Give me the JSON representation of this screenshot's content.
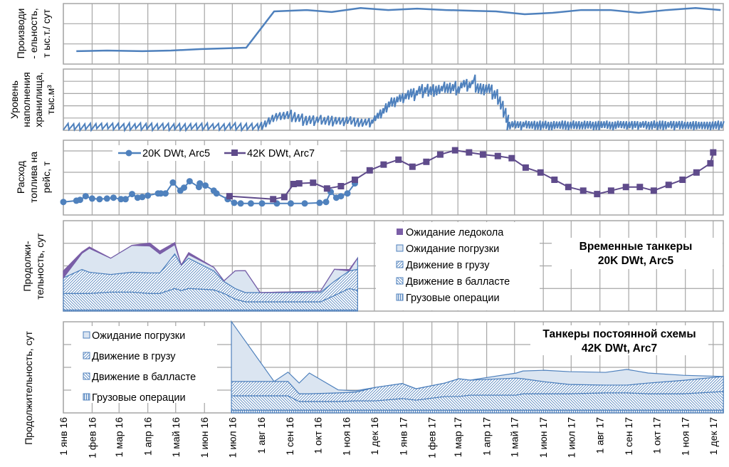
{
  "colors": {
    "blue": "#4f81bd",
    "purple": "#5f4b8b",
    "ice": "#7b5ea7",
    "area_fill": "#dbe5f1",
    "grid": "#a6a6a6"
  },
  "chart_data": [
    {
      "id": "productivity",
      "type": "line",
      "ylabel_lines": [
        "Производи",
        "- ельность,",
        "т ыс.т./ сут"
      ],
      "ylim": [
        0,
        3
      ],
      "x_unit": "days since 1 янв 16",
      "series": [
        {
          "name": "productivity",
          "x": [
            14,
            47,
            85,
            116,
            147,
            197,
            227,
            262,
            289,
            320,
            350,
            381,
            412,
            443,
            466,
            497,
            527,
            558,
            589,
            620,
            650,
            681,
            708
          ],
          "y": [
            0.64,
            0.67,
            0.64,
            0.67,
            0.74,
            0.81,
            2.61,
            2.68,
            2.58,
            2.78,
            2.68,
            2.75,
            2.68,
            2.64,
            2.61,
            2.47,
            2.54,
            2.68,
            2.68,
            2.54,
            2.68,
            2.78,
            2.68
          ]
        }
      ]
    },
    {
      "id": "storage",
      "type": "line",
      "ylabel_lines": [
        "Уровень",
        "наполнения",
        "хранилища,",
        "тыс.м³"
      ],
      "ylim": [
        0,
        5
      ],
      "sawtooth_segments": [
        {
          "from": 0,
          "to": 210,
          "period": 6,
          "envelope": [
            [
              0,
              0.6
            ],
            [
              210,
              0.6
            ]
          ],
          "depth": 0.6
        },
        {
          "from": 210,
          "to": 330,
          "period": 4,
          "envelope": [
            [
              210,
              0.7
            ],
            [
              227,
              1.5
            ],
            [
              240,
              1.8
            ],
            [
              260,
              1.3
            ],
            [
              300,
              1.2
            ],
            [
              330,
              1.0
            ]
          ],
          "depth": 0.8
        },
        {
          "from": 330,
          "to": 478,
          "period": 3,
          "envelope": [
            [
              330,
              1.0
            ],
            [
              345,
              2.4
            ],
            [
              360,
              3.4
            ],
            [
              380,
              3.8
            ],
            [
              400,
              3.9
            ],
            [
              420,
              4.1
            ],
            [
              440,
              4.6
            ],
            [
              455,
              4.1
            ],
            [
              468,
              3.2
            ],
            [
              478,
              1.2
            ]
          ],
          "depth": 0.9
        },
        {
          "from": 478,
          "to": 711,
          "period": 3,
          "envelope": [
            [
              478,
              0.8
            ],
            [
              711,
              0.8
            ]
          ],
          "depth": 0.75
        }
      ]
    },
    {
      "id": "fuel",
      "type": "line",
      "ylabel_lines": [
        "Расход",
        "топлива на",
        "рейс, т"
      ],
      "ylim": [
        0,
        3.5
      ],
      "series": [
        {
          "name": "20K DWt, Arc5",
          "marker": "circle",
          "x": [
            0,
            14,
            18,
            24,
            31,
            39,
            47,
            54,
            62,
            67,
            74,
            80,
            85,
            91,
            102,
            105,
            110,
            118,
            126,
            130,
            136,
            146,
            147,
            153,
            162,
            165,
            177,
            184,
            191,
            202,
            214,
            230,
            245,
            260,
            276,
            283,
            288,
            294,
            299,
            306,
            314
          ],
          "y": [
            0.61,
            0.67,
            0.71,
            0.88,
            0.77,
            0.74,
            0.77,
            0.81,
            0.74,
            0.74,
            0.98,
            0.81,
            0.84,
            0.91,
            1.01,
            1.01,
            1.01,
            1.52,
            1.14,
            1.28,
            1.58,
            1.31,
            1.48,
            1.38,
            1.14,
            1.01,
            0.74,
            0.57,
            0.54,
            0.54,
            0.54,
            0.54,
            0.54,
            0.54,
            0.57,
            0.61,
            1.08,
            0.81,
            0.88,
            1.01,
            1.48
          ]
        },
        {
          "name": "42K DWt, Arc7",
          "marker": "square",
          "x": [
            179,
            226,
            238,
            248,
            254,
            269,
            284,
            299,
            314,
            330,
            345,
            361,
            376,
            391,
            406,
            422,
            437,
            452,
            468,
            483,
            498,
            514,
            529,
            544,
            560,
            575,
            590,
            606,
            621,
            636,
            652,
            667,
            682,
            697,
            700
          ],
          "y": [
            0.88,
            0.74,
            0.84,
            1.45,
            1.48,
            1.51,
            1.24,
            1.35,
            1.65,
            2.09,
            2.36,
            2.59,
            2.26,
            2.49,
            2.83,
            3.03,
            2.93,
            2.83,
            2.76,
            2.66,
            2.22,
            1.99,
            1.65,
            1.31,
            1.14,
            0.98,
            1.14,
            1.31,
            1.31,
            1.14,
            1.41,
            1.65,
            1.99,
            2.42,
            2.93
          ]
        }
      ]
    },
    {
      "id": "duration-20k",
      "type": "area",
      "stacked": true,
      "ylabel_lines": [
        "Продолжи-",
        "тельность, сут"
      ],
      "ylim": [
        0,
        4
      ],
      "title_lines": [
        "Временные танкеры",
        "20K DWt, Arc5"
      ],
      "x": [
        0,
        20,
        28,
        51,
        74,
        93,
        104,
        120,
        127,
        135,
        162,
        173,
        185,
        196,
        212,
        277,
        292,
        308,
        317
      ],
      "layers": [
        {
          "name": "Грузовые операции",
          "pattern": "vert",
          "values": [
            0.05,
            0.05,
            0.05,
            0.05,
            0.05,
            0.05,
            0.05,
            0.05,
            0.05,
            0.05,
            0.05,
            0.05,
            0.05,
            0.05,
            0.05,
            0.05,
            0.05,
            0.05,
            0.05
          ]
        },
        {
          "name": "Движение в балласте",
          "pattern": "back",
          "values": [
            0.73,
            0.73,
            0.73,
            0.79,
            0.79,
            0.73,
            0.73,
            0.95,
            0.86,
            0.95,
            0.89,
            0.73,
            0.48,
            0.36,
            0.36,
            0.36,
            0.64,
            0.95,
            0.86
          ]
        },
        {
          "name": "Движение в грузу",
          "pattern": "fwd",
          "values": [
            0.69,
            1.06,
            0.94,
            0.78,
            0.88,
            0.91,
            0.91,
            1.53,
            1.13,
            1.34,
            0.84,
            0.53,
            0.47,
            0.41,
            0.41,
            0.41,
            0.63,
            0.78,
            0.94
          ]
        },
        {
          "name": "Ожидание погрузки",
          "pattern": "solid",
          "values": [
            0,
            0.72,
            1.06,
            0.72,
            1.19,
            1.19,
            0.84,
            0.41,
            0,
            0.16,
            0.16,
            0.03,
            0.78,
            0.97,
            0,
            0.06,
            0.53,
            0,
            0.5
          ]
        },
        {
          "name": "Ожидание ледокола",
          "pattern": "ice",
          "values": [
            0.31,
            0.06,
            0.06,
            0,
            0,
            0.13,
            0.13,
            0.09,
            0,
            0.09,
            0,
            0,
            0,
            0,
            0,
            0,
            0,
            0.06,
            0
          ]
        }
      ]
    },
    {
      "id": "duration-42k",
      "type": "area",
      "stacked": true,
      "ylabel_lines": [
        "Продолжительность, сут"
      ],
      "ylim": [
        0,
        4
      ],
      "title_lines": [
        "Танкеры постоянной схемы",
        "42K DWt, Arc7"
      ],
      "x": [
        181,
        227,
        242,
        254,
        265,
        296,
        315,
        336,
        365,
        380,
        411,
        426,
        438,
        488,
        495,
        518,
        545,
        584,
        607,
        630,
        668,
        711
      ],
      "layers": [
        {
          "name": "Грузовые операции",
          "pattern": "vert",
          "values": [
            0.12,
            0.12,
            0.12,
            0.12,
            0.12,
            0.12,
            0.12,
            0.12,
            0.12,
            0.12,
            0.12,
            0.12,
            0.12,
            0.12,
            0.12,
            0.12,
            0.12,
            0.12,
            0.12,
            0.12,
            0.12,
            0.12
          ]
        },
        {
          "name": "Движение в балласте",
          "pattern": "back",
          "values": [
            0.63,
            0.63,
            0.63,
            0.38,
            0.38,
            0.38,
            0.41,
            0.41,
            0.51,
            0.44,
            0.6,
            0.6,
            0.66,
            0.66,
            0.72,
            0.72,
            0.72,
            0.76,
            0.76,
            0.72,
            0.72,
            0.82
          ]
        },
        {
          "name": "Движение в грузу",
          "pattern": "fwd",
          "values": [
            0.63,
            0.63,
            0.63,
            0.34,
            0.34,
            0.38,
            0.38,
            0.59,
            0.66,
            0.5,
            0.59,
            0.78,
            0.66,
            0.75,
            0.66,
            0.53,
            0.41,
            0.34,
            0.34,
            0.47,
            0.59,
            0.66
          ]
        },
        {
          "name": "Ожидание погрузки",
          "pattern": "solid",
          "values": [
            2.63,
            0,
            0.41,
            0.47,
            0.91,
            0.13,
            0.06,
            0,
            0,
            0,
            0,
            0,
            0,
            0.22,
            0.34,
            0.5,
            0.56,
            0.56,
            0.69,
            0.44,
            0.22,
            0
          ]
        }
      ]
    }
  ],
  "x_axis": {
    "ticks": [
      "1 янв 16",
      "1 фев 16",
      "1 мар 16",
      "1 апр 16",
      "1 май 16",
      "1 июн 16",
      "1 июл 16",
      "1 авг 16",
      "1 сен 16",
      "1 окт 16",
      "1 ноя 16",
      "1 дек 16",
      "1 янв 17",
      "1 фев 17",
      "1 мар 17",
      "1 апр 17",
      "1 май 17",
      "1 июн 17",
      "1 июл 17",
      "1 авг 17",
      "1 сен 17",
      "1 окт 17",
      "1 ноя 17",
      "1 дек 17"
    ],
    "tick_days": [
      0,
      31,
      60,
      91,
      121,
      152,
      182,
      213,
      244,
      274,
      305,
      335,
      366,
      397,
      425,
      456,
      486,
      517,
      547,
      578,
      609,
      639,
      670,
      700
    ]
  },
  "legend_fuel": [
    "20K DWt, Arc5",
    "42K DWt, Arc7"
  ],
  "legend_20k": [
    "Ожидание ледокола",
    "Ожидание погрузки",
    "Движение в грузу",
    "Движение в балласте",
    "Грузовые операции"
  ],
  "legend_42k": [
    "Ожидание погрузки",
    "Движение в грузу",
    "Движение в балласте",
    "Грузовые операции"
  ]
}
